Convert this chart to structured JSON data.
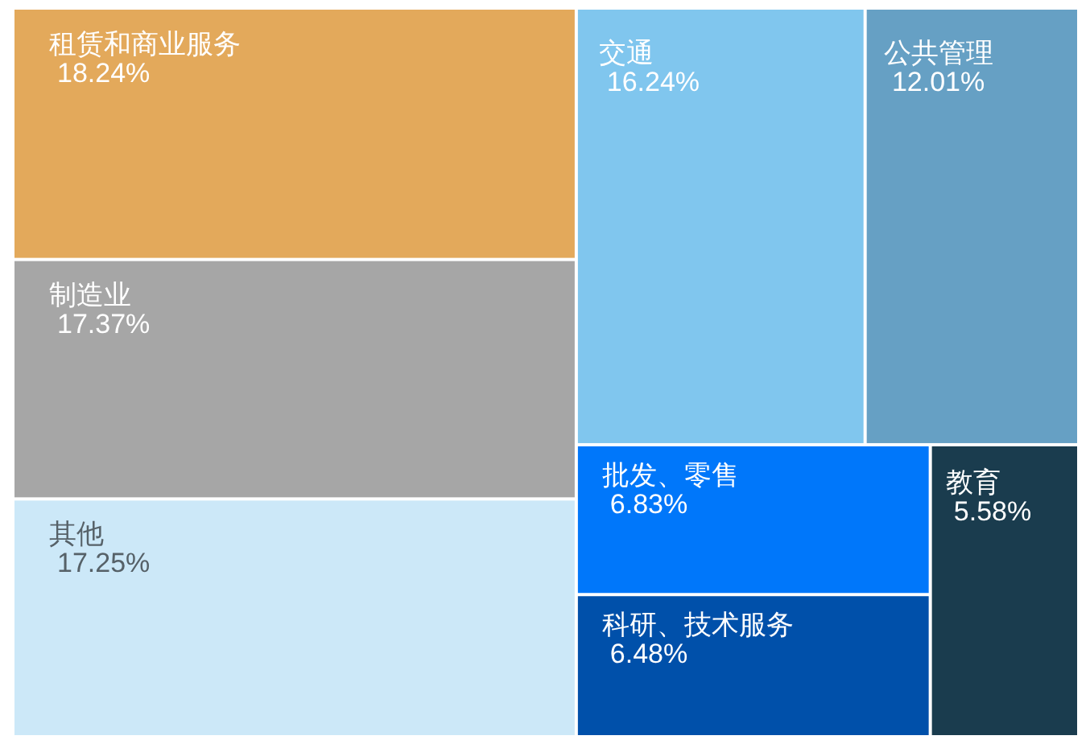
{
  "chart_data": {
    "type": "other",
    "categories": [
      "租赁和商业服务",
      "制造业",
      "其他",
      "交通",
      "公共管理",
      "批发、零售",
      "科研、技术服务",
      "教育"
    ],
    "values": [
      18.24,
      17.37,
      17.25,
      16.24,
      12.01,
      6.83,
      6.48,
      5.58
    ],
    "value_labels": [
      "18.24%",
      "17.37%",
      "17.25%",
      "16.24%",
      "12.01%",
      "6.83%",
      "6.48%",
      "5.58%"
    ],
    "colors": [
      "#e3a95b",
      "#a6a6a6",
      "#cce8f8",
      "#80c6ee",
      "#66a0c4",
      "#0077fa",
      "#0050aa",
      "#1a3c4e"
    ]
  }
}
